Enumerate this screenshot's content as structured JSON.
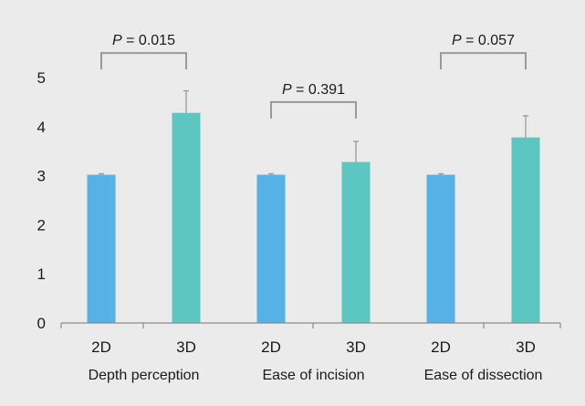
{
  "chart_data": {
    "type": "bar",
    "title": "",
    "xlabel": "",
    "ylabel": "",
    "ylim": [
      0,
      5
    ],
    "yticks": [
      0,
      1,
      2,
      3,
      4,
      5
    ],
    "grid": false,
    "groups": [
      {
        "name": "Depth perception",
        "bars": [
          {
            "label": "2D",
            "value": 3.02,
            "error": 0.02,
            "color": "#56b1e6"
          },
          {
            "label": "3D",
            "value": 4.28,
            "error": 0.45,
            "color": "#5cc6c0"
          }
        ]
      },
      {
        "name": "Ease of incision",
        "bars": [
          {
            "label": "2D",
            "value": 3.02,
            "error": 0.02,
            "color": "#56b1e6"
          },
          {
            "label": "3D",
            "value": 3.28,
            "error": 0.42,
            "color": "#5cc6c0"
          }
        ]
      },
      {
        "name": "Ease of dissection",
        "bars": [
          {
            "label": "2D",
            "value": 3.02,
            "error": 0.02,
            "color": "#56b1e6"
          },
          {
            "label": "3D",
            "value": 3.78,
            "error": 0.44,
            "color": "#5cc6c0"
          }
        ]
      }
    ],
    "annotations": [
      {
        "group": 0,
        "p_label": "P",
        "p_value": "= 0.015",
        "y": 5.5
      },
      {
        "group": 1,
        "p_label": "P",
        "p_value": "= 0.391",
        "y": 4.5
      },
      {
        "group": 2,
        "p_label": "P",
        "p_value": "= 0.057",
        "y": 5.5
      }
    ],
    "colors": {
      "axis": "#8c8c8c",
      "bracket": "#999999",
      "error_bar": "#999999",
      "background": "#ebebeb"
    }
  }
}
